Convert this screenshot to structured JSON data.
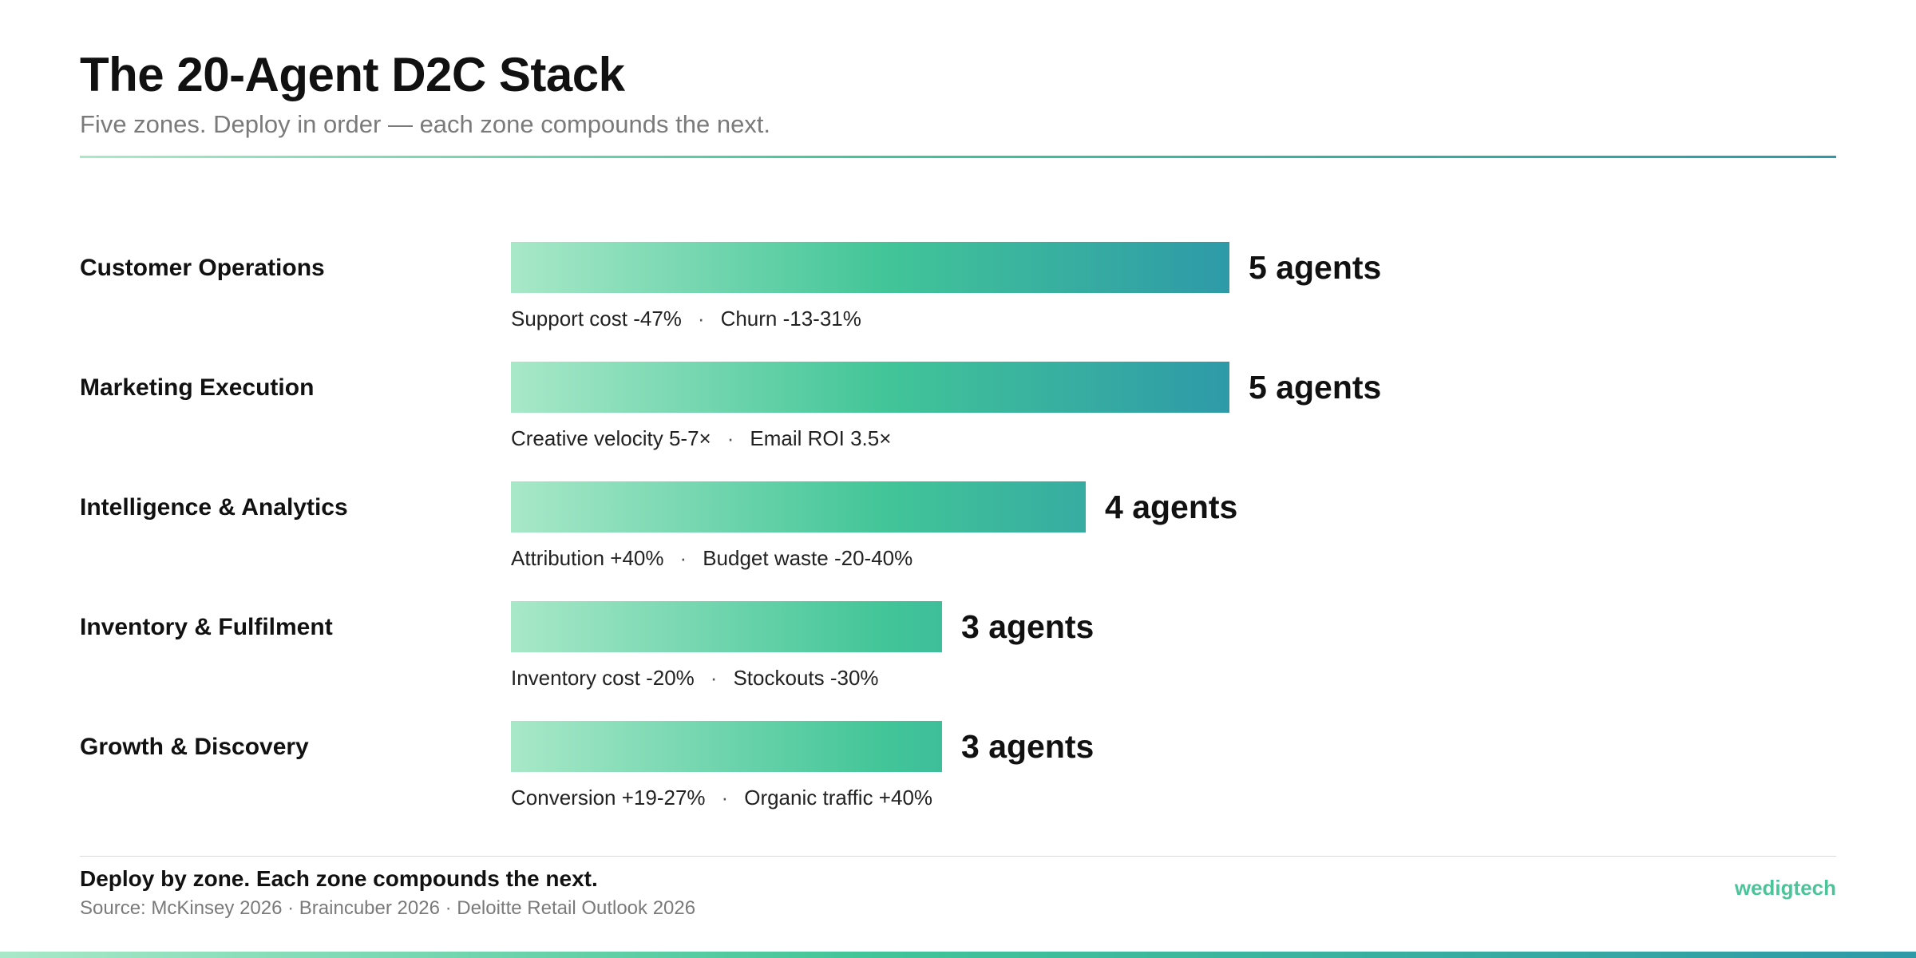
{
  "header": {
    "title": "The 20-Agent D2C Stack",
    "subtitle": "Five zones. Deploy in order — each zone compounds the next."
  },
  "colors": {
    "gradient_start": "#a8e8c8",
    "gradient_mid": "#42c598",
    "gradient_end": "#2e9aa8",
    "brand": "#4cc49a"
  },
  "chart_data": {
    "type": "bar",
    "orientation": "horizontal",
    "categories": [
      "Customer Operations",
      "Marketing Execution",
      "Intelligence & Analytics",
      "Inventory & Fulfilment",
      "Growth & Discovery"
    ],
    "values": [
      5,
      5,
      4,
      3,
      3
    ],
    "value_labels": [
      "5 agents",
      "5 agents",
      "4 agents",
      "3 agents",
      "3 agents"
    ],
    "metrics": [
      [
        "Support cost -47%",
        "Churn -13-31%"
      ],
      [
        "Creative velocity 5-7×",
        "Email ROI 3.5×"
      ],
      [
        "Attribution +40%",
        "Budget waste -20-40%"
      ],
      [
        "Inventory cost -20%",
        "Stockouts -30%"
      ],
      [
        "Conversion +19-27%",
        "Organic traffic +40%"
      ]
    ],
    "separator": "·",
    "xlim": [
      0,
      5
    ],
    "grid": false,
    "legend": "none"
  },
  "footer": {
    "tagline": "Deploy by zone. Each zone compounds the next.",
    "source": "Source: McKinsey 2026 · Braincuber 2026 · Deloitte Retail Outlook 2026",
    "brand": "wedigtech"
  }
}
